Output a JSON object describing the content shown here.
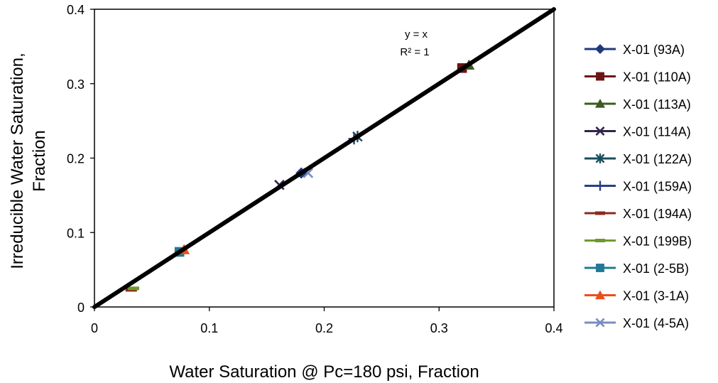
{
  "chart_data": {
    "type": "scatter",
    "title": "",
    "xlabel": "Water Saturation @ Pc=180 psi, Fraction",
    "ylabel_lines": [
      "Irreducible Water Saturation,",
      "Fraction"
    ],
    "xlim": [
      0,
      0.4
    ],
    "ylim": [
      0,
      0.4
    ],
    "xticks": [
      0,
      0.1,
      0.2,
      0.3,
      0.4
    ],
    "yticks": [
      0,
      0.1,
      0.2,
      0.3,
      0.4
    ],
    "xtick_labels": [
      "0",
      "0.1",
      "0.2",
      "0.3",
      "0.4"
    ],
    "ytick_labels": [
      "0",
      "0.1",
      "0.2",
      "0.3",
      "0.4"
    ],
    "grid": false,
    "legend_position": "right",
    "trendline": {
      "x": [
        0,
        0.4
      ],
      "y": [
        0,
        0.4
      ],
      "equation": "y = x",
      "r_squared": "R² = 1",
      "color": "#000000"
    },
    "series": [
      {
        "name": "X-01 (93A)",
        "marker": "diamond",
        "color": "#1f3a7a",
        "x": [
          0.18
        ],
        "y": [
          0.18
        ]
      },
      {
        "name": "X-01 (110A)",
        "marker": "square",
        "color": "#6b1416",
        "x": [
          0.32
        ],
        "y": [
          0.321
        ]
      },
      {
        "name": "X-01 (113A)",
        "marker": "triangle",
        "color": "#3d5a1f",
        "x": [
          0.326
        ],
        "y": [
          0.325
        ]
      },
      {
        "name": "X-01 (114A)",
        "marker": "x",
        "color": "#33234e",
        "x": [
          0.161
        ],
        "y": [
          0.164
        ]
      },
      {
        "name": "X-01 (122A)",
        "marker": "asterisk",
        "color": "#1a4d5e",
        "x": [
          0.229
        ],
        "y": [
          0.229
        ]
      },
      {
        "name": "X-01 (159A)",
        "marker": "plus",
        "color": "#2a3f86",
        "x": [
          0.226
        ],
        "y": [
          0.226
        ]
      },
      {
        "name": "X-01 (194A)",
        "marker": "dash",
        "color": "#8b2a22",
        "x": [
          0.032
        ],
        "y": [
          0.023
        ]
      },
      {
        "name": "X-01 (199B)",
        "marker": "dash",
        "color": "#6e9a2c",
        "x": [
          0.034
        ],
        "y": [
          0.025
        ]
      },
      {
        "name": "X-01 (2-5B)",
        "marker": "square",
        "color": "#1e7a96",
        "x": [
          0.074
        ],
        "y": [
          0.074
        ]
      },
      {
        "name": "X-01 (3-1A)",
        "marker": "triangle",
        "color": "#e8501a",
        "x": [
          0.078
        ],
        "y": [
          0.077
        ]
      },
      {
        "name": "X-01 (4-5A)",
        "marker": "x",
        "color": "#7a8cc2",
        "x": [
          0.186
        ],
        "y": [
          0.18
        ]
      }
    ]
  }
}
